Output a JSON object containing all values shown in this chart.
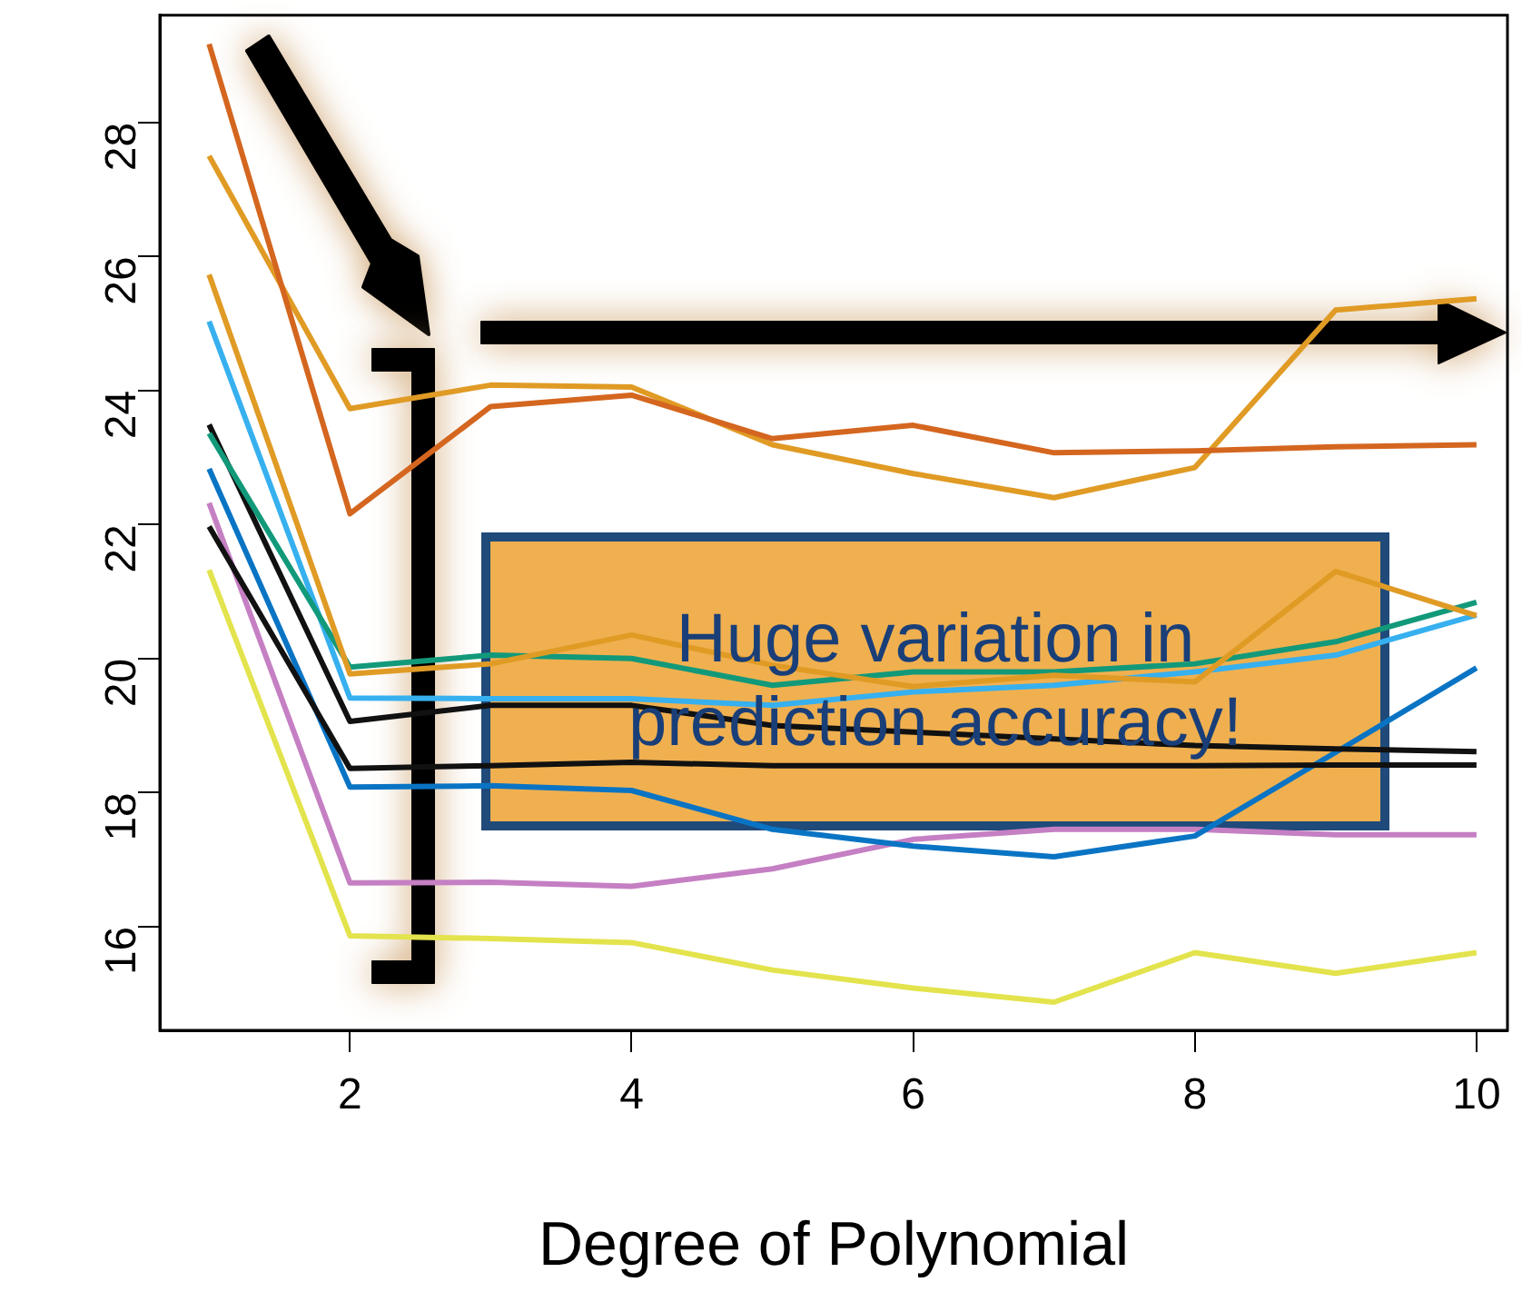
{
  "chart_data": {
    "type": "line",
    "x": [
      1,
      2,
      3,
      4,
      5,
      6,
      7,
      8,
      9,
      10
    ],
    "series": [
      {
        "color": "#d4661f",
        "values": [
          29.17,
          22.16,
          23.76,
          23.93,
          23.28,
          23.48,
          23.07,
          23.1,
          23.16,
          23.19
        ]
      },
      {
        "color": "#e09b25",
        "values": [
          27.5,
          23.73,
          24.08,
          24.05,
          23.19,
          22.76,
          22.4,
          22.85,
          25.2,
          25.37
        ]
      },
      {
        "color": "#e09b25",
        "values": [
          25.73,
          19.77,
          19.92,
          20.35,
          19.9,
          19.58,
          19.75,
          19.65,
          21.3,
          20.64
        ]
      },
      {
        "color": "#12997a",
        "values": [
          23.36,
          19.87,
          20.05,
          20.0,
          19.6,
          19.8,
          19.8,
          19.92,
          20.25,
          20.84
        ]
      },
      {
        "color": "#37b0ef",
        "values": [
          25.03,
          19.41,
          19.4,
          19.4,
          19.3,
          19.5,
          19.6,
          19.8,
          20.05,
          20.65
        ]
      },
      {
        "color": "#111111",
        "values": [
          23.49,
          19.06,
          19.3,
          19.3,
          19.0,
          18.9,
          18.8,
          18.7,
          18.65,
          18.61
        ]
      },
      {
        "color": "#111111",
        "values": [
          21.97,
          18.36,
          18.4,
          18.45,
          18.4,
          18.4,
          18.4,
          18.4,
          18.41,
          18.41
        ]
      },
      {
        "color": "#0a74c4",
        "values": [
          22.83,
          18.08,
          18.1,
          18.03,
          17.45,
          17.2,
          17.04,
          17.35,
          18.6,
          19.86
        ]
      },
      {
        "color": "#c57fc3",
        "values": [
          22.32,
          16.65,
          16.66,
          16.6,
          16.86,
          17.3,
          17.45,
          17.45,
          17.37,
          17.37
        ]
      },
      {
        "color": "#e3e34d",
        "values": [
          21.32,
          15.86,
          15.82,
          15.76,
          15.35,
          15.08,
          14.87,
          15.61,
          15.3,
          15.61
        ]
      }
    ],
    "xlim": [
      0.65,
      10.22
    ],
    "xticks": [
      2,
      4,
      6,
      8,
      10
    ],
    "ylim": [
      14.45,
      29.6
    ],
    "yticks": [
      16,
      18,
      20,
      22,
      24,
      26,
      28
    ],
    "xlabel": "Degree of Polynomial",
    "annotations": [
      "Huge variation in prediction accuracy!"
    ],
    "grid": false,
    "legend": false,
    "marker": "none",
    "line_style": "solid"
  }
}
